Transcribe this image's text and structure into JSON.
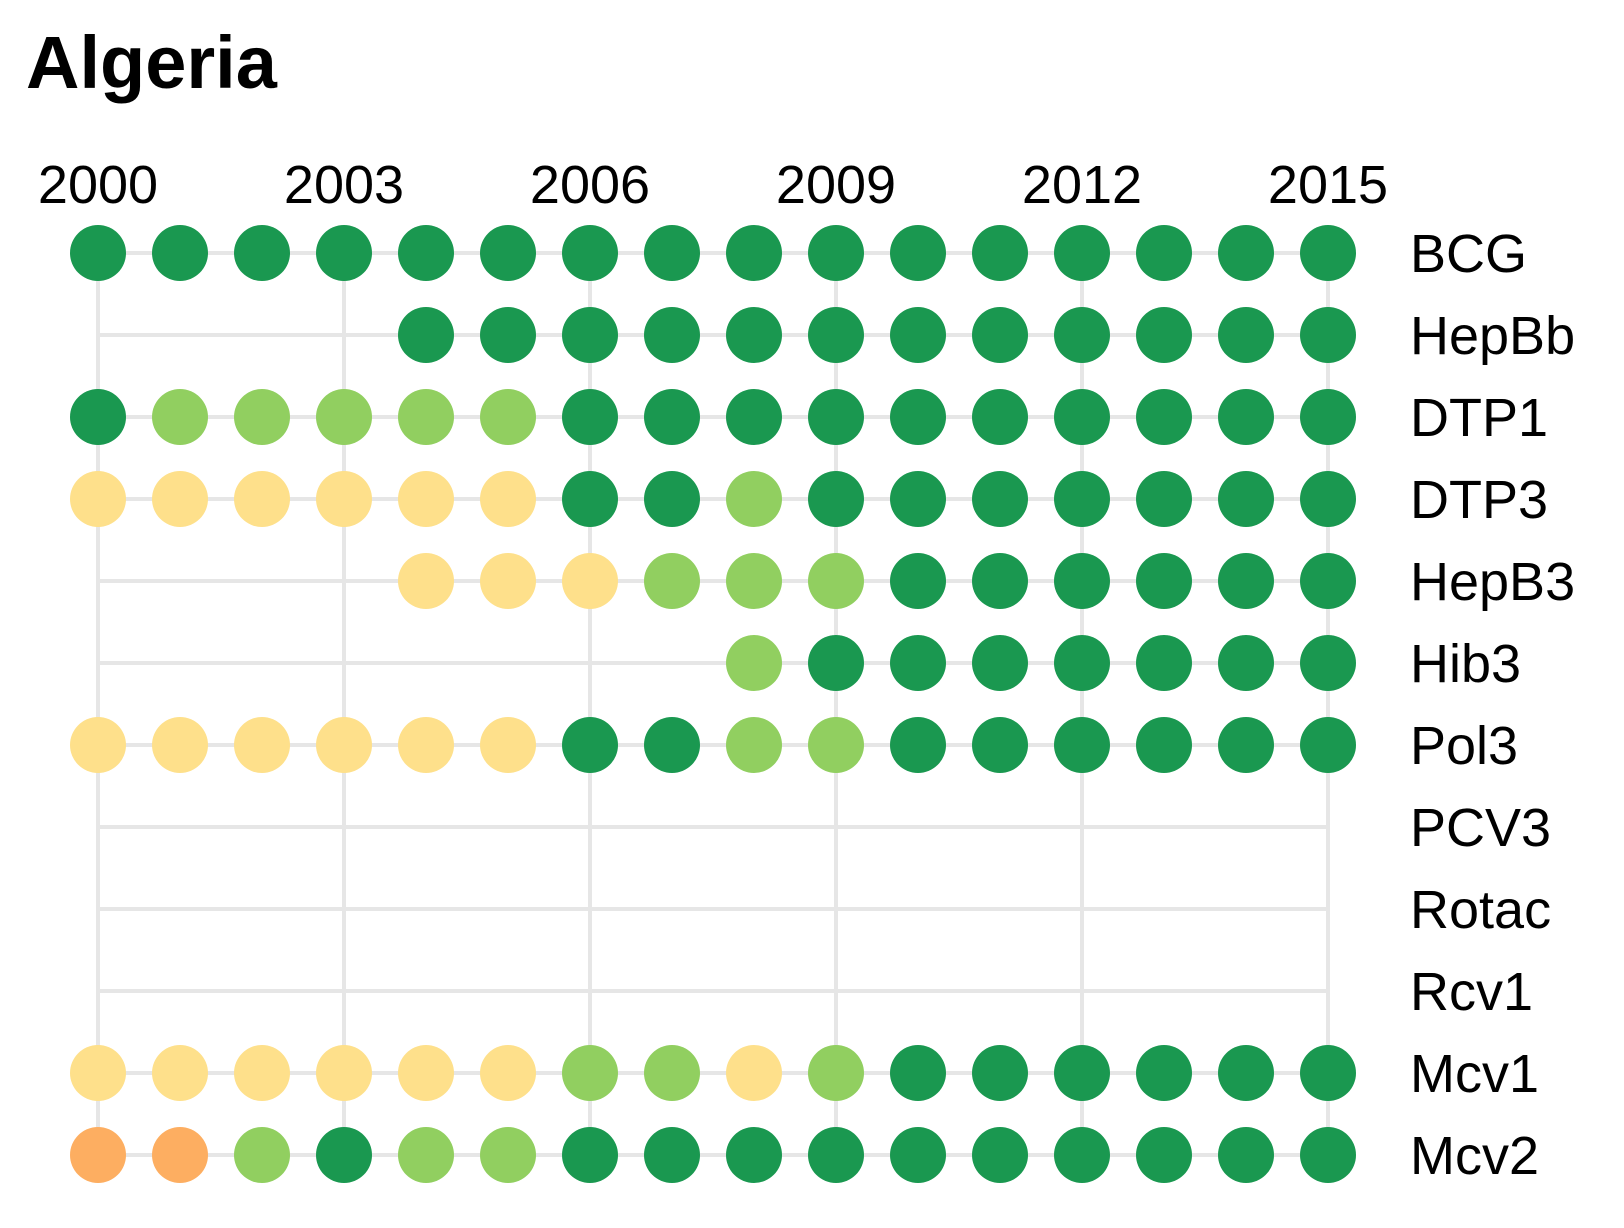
{
  "chart_data": {
    "type": "scatter",
    "title": "Algeria",
    "years": [
      2000,
      2001,
      2002,
      2003,
      2004,
      2005,
      2006,
      2007,
      2008,
      2009,
      2010,
      2011,
      2012,
      2013,
      2014,
      2015
    ],
    "year_ticks": [
      "2000",
      "2003",
      "2006",
      "2009",
      "2012",
      "2015"
    ],
    "level_colors": {
      "high": "#1a9850",
      "medium": "#91cf60",
      "low": "#fee08b",
      "very-low": "#fdae61"
    },
    "rows": [
      {
        "label": "BCG",
        "values": [
          "high",
          "high",
          "high",
          "high",
          "high",
          "high",
          "high",
          "high",
          "high",
          "high",
          "high",
          "high",
          "high",
          "high",
          "high",
          "high"
        ]
      },
      {
        "label": "HepBb",
        "values": [
          null,
          null,
          null,
          null,
          "high",
          "high",
          "high",
          "high",
          "high",
          "high",
          "high",
          "high",
          "high",
          "high",
          "high",
          "high"
        ]
      },
      {
        "label": "DTP1",
        "values": [
          "high",
          "medium",
          "medium",
          "medium",
          "medium",
          "medium",
          "high",
          "high",
          "high",
          "high",
          "high",
          "high",
          "high",
          "high",
          "high",
          "high"
        ]
      },
      {
        "label": "DTP3",
        "values": [
          "low",
          "low",
          "low",
          "low",
          "low",
          "low",
          "high",
          "high",
          "medium",
          "high",
          "high",
          "high",
          "high",
          "high",
          "high",
          "high"
        ]
      },
      {
        "label": "HepB3",
        "values": [
          null,
          null,
          null,
          null,
          "low",
          "low",
          "low",
          "medium",
          "medium",
          "medium",
          "high",
          "high",
          "high",
          "high",
          "high",
          "high"
        ]
      },
      {
        "label": "Hib3",
        "values": [
          null,
          null,
          null,
          null,
          null,
          null,
          null,
          null,
          "medium",
          "high",
          "high",
          "high",
          "high",
          "high",
          "high",
          "high"
        ]
      },
      {
        "label": "Pol3",
        "values": [
          "low",
          "low",
          "low",
          "low",
          "low",
          "low",
          "high",
          "high",
          "medium",
          "medium",
          "high",
          "high",
          "high",
          "high",
          "high",
          "high"
        ]
      },
      {
        "label": "PCV3",
        "values": [
          null,
          null,
          null,
          null,
          null,
          null,
          null,
          null,
          null,
          null,
          null,
          null,
          null,
          null,
          null,
          null
        ]
      },
      {
        "label": "Rotac",
        "values": [
          null,
          null,
          null,
          null,
          null,
          null,
          null,
          null,
          null,
          null,
          null,
          null,
          null,
          null,
          null,
          null
        ]
      },
      {
        "label": "Rcv1",
        "values": [
          null,
          null,
          null,
          null,
          null,
          null,
          null,
          null,
          null,
          null,
          null,
          null,
          null,
          null,
          null,
          null
        ]
      },
      {
        "label": "Mcv1",
        "values": [
          "low",
          "low",
          "low",
          "low",
          "low",
          "low",
          "medium",
          "medium",
          "low",
          "medium",
          "high",
          "high",
          "high",
          "high",
          "high",
          "high"
        ]
      },
      {
        "label": "Mcv2",
        "values": [
          "very-low",
          "very-low",
          "medium",
          "high",
          "medium",
          "medium",
          "high",
          "high",
          "high",
          "high",
          "high",
          "high",
          "high",
          "high",
          "high",
          "high"
        ]
      }
    ]
  }
}
